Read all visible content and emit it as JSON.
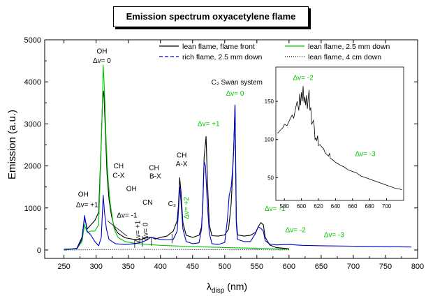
{
  "chart_data": {
    "type": "line",
    "title": "Emission spectrum oxyacetylene flame",
    "xlabel": {
      "main": "λ",
      "sub": "disp",
      "unit": "(nm)"
    },
    "ylabel": "Emission (a.u.)",
    "xlim": [
      220,
      800
    ],
    "ylim": [
      -200,
      5000
    ],
    "xticks": [
      250,
      300,
      350,
      400,
      450,
      500,
      550,
      600,
      650,
      700,
      750,
      800
    ],
    "yticks": [
      0,
      1000,
      2000,
      3000,
      4000,
      5000
    ],
    "legend": {
      "placement": "top-right"
    },
    "series": [
      {
        "name": "lean flame, flame front",
        "color": "#000000",
        "dash": "solid",
        "points": [
          [
            250,
            0
          ],
          [
            270,
            40
          ],
          [
            278,
            300
          ],
          [
            282,
            780
          ],
          [
            286,
            500
          ],
          [
            292,
            600
          ],
          [
            298,
            700
          ],
          [
            304,
            900
          ],
          [
            308,
            2600
          ],
          [
            310,
            3600
          ],
          [
            312,
            3780
          ],
          [
            314,
            3000
          ],
          [
            317,
            1800
          ],
          [
            320,
            1200
          ],
          [
            324,
            800
          ],
          [
            328,
            550
          ],
          [
            334,
            400
          ],
          [
            345,
            290
          ],
          [
            360,
            250
          ],
          [
            370,
            250
          ],
          [
            380,
            300
          ],
          [
            386,
            300
          ],
          [
            392,
            260
          ],
          [
            400,
            300
          ],
          [
            410,
            330
          ],
          [
            420,
            450
          ],
          [
            426,
            700
          ],
          [
            428,
            1050
          ],
          [
            430,
            1720
          ],
          [
            432,
            1380
          ],
          [
            435,
            650
          ],
          [
            440,
            350
          ],
          [
            450,
            300
          ],
          [
            460,
            350
          ],
          [
            464,
            550
          ],
          [
            466,
            1100
          ],
          [
            468,
            2200
          ],
          [
            471,
            2700
          ],
          [
            473,
            1700
          ],
          [
            476,
            600
          ],
          [
            480,
            340
          ],
          [
            490,
            330
          ],
          [
            500,
            360
          ],
          [
            506,
            500
          ],
          [
            510,
            1100
          ],
          [
            512,
            1700
          ],
          [
            514,
            2450
          ],
          [
            516,
            3450
          ],
          [
            517,
            2300
          ],
          [
            518,
            700
          ],
          [
            520,
            360
          ],
          [
            530,
            330
          ],
          [
            540,
            350
          ],
          [
            548,
            420
          ],
          [
            552,
            550
          ],
          [
            556,
            650
          ],
          [
            560,
            600
          ],
          [
            563,
            300
          ],
          [
            570,
            120
          ],
          [
            580,
            60
          ],
          [
            600,
            30
          ]
        ]
      },
      {
        "name": "lean flame, 2.5 mm down",
        "color": "#00c800",
        "dash": "solid",
        "points": [
          [
            250,
            0
          ],
          [
            270,
            30
          ],
          [
            278,
            200
          ],
          [
            282,
            600
          ],
          [
            286,
            420
          ],
          [
            292,
            450
          ],
          [
            298,
            450
          ],
          [
            304,
            600
          ],
          [
            308,
            2500
          ],
          [
            310,
            3700
          ],
          [
            311,
            4400
          ],
          [
            313,
            3800
          ],
          [
            315,
            2800
          ],
          [
            318,
            1800
          ],
          [
            322,
            1100
          ],
          [
            328,
            500
          ],
          [
            334,
            300
          ],
          [
            345,
            200
          ],
          [
            360,
            160
          ],
          [
            380,
            130
          ],
          [
            400,
            110
          ],
          [
            450,
            80
          ],
          [
            500,
            60
          ],
          [
            550,
            40
          ],
          [
            600,
            20
          ]
        ]
      },
      {
        "name": "rich flame, 2.5 mm down",
        "color": "#0000cc",
        "dash": "solid",
        "points": [
          [
            250,
            20
          ],
          [
            270,
            30
          ],
          [
            278,
            250
          ],
          [
            282,
            820
          ],
          [
            286,
            450
          ],
          [
            292,
            350
          ],
          [
            298,
            200
          ],
          [
            304,
            100
          ],
          [
            308,
            300
          ],
          [
            311,
            1300
          ],
          [
            313,
            900
          ],
          [
            316,
            500
          ],
          [
            320,
            250
          ],
          [
            330,
            150
          ],
          [
            345,
            130
          ],
          [
            360,
            150
          ],
          [
            370,
            180
          ],
          [
            378,
            230
          ],
          [
            385,
            300
          ],
          [
            392,
            280
          ],
          [
            400,
            250
          ],
          [
            410,
            240
          ],
          [
            420,
            250
          ],
          [
            426,
            450
          ],
          [
            428,
            900
          ],
          [
            430,
            1500
          ],
          [
            432,
            1150
          ],
          [
            435,
            500
          ],
          [
            440,
            200
          ],
          [
            450,
            150
          ],
          [
            460,
            170
          ],
          [
            464,
            500
          ],
          [
            466,
            1200
          ],
          [
            468,
            2100
          ],
          [
            470,
            2000
          ],
          [
            473,
            1100
          ],
          [
            476,
            400
          ],
          [
            480,
            150
          ],
          [
            490,
            130
          ],
          [
            500,
            180
          ],
          [
            504,
            700
          ],
          [
            507,
            1300
          ],
          [
            510,
            1500
          ],
          [
            512,
            1850
          ],
          [
            514,
            2400
          ],
          [
            516,
            3450
          ],
          [
            517,
            2000
          ],
          [
            518,
            600
          ],
          [
            520,
            250
          ],
          [
            530,
            200
          ],
          [
            540,
            200
          ],
          [
            548,
            400
          ],
          [
            552,
            550
          ],
          [
            556,
            520
          ],
          [
            560,
            450
          ],
          [
            563,
            220
          ],
          [
            570,
            140
          ],
          [
            580,
            120
          ],
          [
            600,
            130
          ],
          [
            620,
            110
          ],
          [
            650,
            100
          ],
          [
            700,
            90
          ],
          [
            750,
            80
          ],
          [
            790,
            70
          ]
        ]
      },
      {
        "name": "lean flame, 4 cm down",
        "color": "#000000",
        "dash": "dotted",
        "points": [
          [
            250,
            0
          ],
          [
            300,
            10
          ],
          [
            350,
            15
          ],
          [
            400,
            12
          ],
          [
            450,
            10
          ],
          [
            500,
            8
          ],
          [
            550,
            6
          ],
          [
            600,
            5
          ]
        ]
      }
    ],
    "annotations": [
      {
        "text": "OH",
        "x": 309,
        "y": 4680,
        "color": "#000000"
      },
      {
        "text": "Δv= 0",
        "x": 309,
        "y": 4450,
        "color": "#000000"
      },
      {
        "text": "OH",
        "x": 280,
        "y": 1270,
        "color": "#000000"
      },
      {
        "text": "Δv= +1",
        "x": 286,
        "y": 1020,
        "color": "#000000"
      },
      {
        "text": "CH",
        "x": 335,
        "y": 1940,
        "color": "#000000"
      },
      {
        "text": "C-X",
        "x": 335,
        "y": 1720,
        "color": "#000000"
      },
      {
        "text": "OH",
        "x": 355,
        "y": 1400,
        "color": "#000000"
      },
      {
        "text": "Δv= -1",
        "x": 348,
        "y": 770,
        "color": "#000000"
      },
      {
        "text": "CN",
        "x": 380,
        "y": 1080,
        "color": "#000000"
      },
      {
        "text": "Δv= +1",
        "x": 368,
        "y": 440,
        "color": "#000000",
        "rotate": true
      },
      {
        "text": "Δv= 0",
        "x": 380,
        "y": 440,
        "color": "#000000",
        "rotate": true
      },
      {
        "text": "CH",
        "x": 390,
        "y": 1900,
        "color": "#000000"
      },
      {
        "text": "B-X",
        "x": 392,
        "y": 1700,
        "color": "#000000"
      },
      {
        "text": "C₃",
        "x": 418,
        "y": 1050,
        "color": "#000000"
      },
      {
        "text": "CH",
        "x": 433,
        "y": 2200,
        "color": "#000000"
      },
      {
        "text": "A-X",
        "x": 433,
        "y": 1990,
        "color": "#000000"
      },
      {
        "text": "Δv= +2",
        "x": 444,
        "y": 1000,
        "color": "#00c800",
        "rotate": true
      },
      {
        "text": "Δv= +1",
        "x": 475,
        "y": 2950,
        "color": "#00c800"
      },
      {
        "text": "C₂ Swan system",
        "x": 519,
        "y": 3940,
        "color": "#000000"
      },
      {
        "text": "Δv= 0",
        "x": 516,
        "y": 3670,
        "color": "#00c800"
      },
      {
        "text": "Δv= -1",
        "x": 578,
        "y": 930,
        "color": "#00c800"
      },
      {
        "text": "Δv= -2",
        "x": 610,
        "y": 420,
        "color": "#00c800"
      },
      {
        "text": "Δv= -3",
        "x": 670,
        "y": 310,
        "color": "#00c800"
      }
    ]
  },
  "inset": {
    "xlim": [
      570,
      720
    ],
    "ylim": [
      20,
      195
    ],
    "xticks": [
      580,
      600,
      620,
      640,
      660,
      680,
      700
    ],
    "yticks": [
      50,
      100,
      150
    ],
    "color": "#000000",
    "points": [
      [
        572,
        108
      ],
      [
        575,
        112
      ],
      [
        578,
        115
      ],
      [
        580,
        120
      ],
      [
        583,
        118
      ],
      [
        586,
        125
      ],
      [
        589,
        132
      ],
      [
        591,
        128
      ],
      [
        593,
        140
      ],
      [
        595,
        150
      ],
      [
        597,
        138
      ],
      [
        598,
        160
      ],
      [
        599,
        145
      ],
      [
        600,
        162
      ],
      [
        601,
        150
      ],
      [
        602,
        170
      ],
      [
        603,
        148
      ],
      [
        604,
        156
      ],
      [
        605,
        145
      ],
      [
        606,
        158
      ],
      [
        607,
        140
      ],
      [
        608,
        155
      ],
      [
        609,
        165
      ],
      [
        610,
        138
      ],
      [
        611,
        142
      ],
      [
        612,
        120
      ],
      [
        613,
        122
      ],
      [
        614,
        125
      ],
      [
        615,
        118
      ],
      [
        616,
        100
      ],
      [
        617,
        102
      ],
      [
        618,
        98
      ],
      [
        619,
        105
      ],
      [
        620,
        92
      ],
      [
        622,
        93
      ],
      [
        624,
        90
      ],
      [
        626,
        88
      ],
      [
        628,
        82
      ],
      [
        630,
        80
      ],
      [
        632,
        78
      ],
      [
        633,
        82
      ],
      [
        634,
        75
      ],
      [
        636,
        74
      ],
      [
        638,
        72
      ],
      [
        640,
        70
      ],
      [
        643,
        68
      ],
      [
        646,
        66
      ],
      [
        650,
        64
      ],
      [
        655,
        60
      ],
      [
        660,
        58
      ],
      [
        665,
        56
      ],
      [
        670,
        52
      ],
      [
        675,
        50
      ],
      [
        680,
        48
      ],
      [
        685,
        46
      ],
      [
        690,
        44
      ],
      [
        695,
        42
      ],
      [
        700,
        40
      ],
      [
        705,
        38
      ],
      [
        710,
        36
      ],
      [
        715,
        35
      ],
      [
        718,
        34
      ]
    ],
    "annotations": [
      {
        "text": "Δv= -2",
        "x": 602,
        "y": 178,
        "color": "#00c800"
      },
      {
        "text": "Δv= -3",
        "x": 675,
        "y": 78,
        "color": "#00c800"
      }
    ]
  }
}
